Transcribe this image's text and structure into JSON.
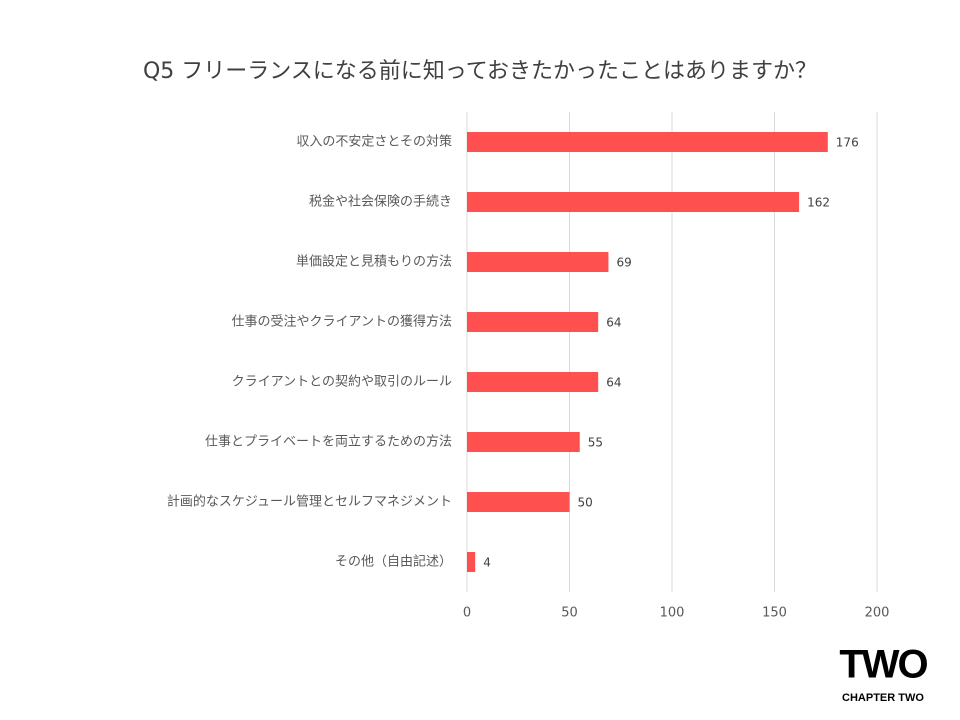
{
  "chart_data": {
    "type": "barh",
    "title": "Q5 フリーランスになる前に知っておきたかったことはありますか？",
    "categories": [
      "収入の不安定さとその対策",
      "税金や社会保険の手続き",
      "単価設定と見積もりの方法",
      "仕事の受注やクライアントの獲得方法",
      "クライアントとの契約や取引のルール",
      "仕事とプライベートを両立するための方法",
      "計画的なスケジュール管理とセルフマネジメント",
      "その他（自由記述）"
    ],
    "values": [
      176,
      162,
      69,
      64,
      64,
      55,
      50,
      4
    ],
    "color": "#ff5050",
    "xlim": [
      0,
      200
    ],
    "xticks": [
      0,
      50,
      100,
      150,
      200
    ],
    "grid": true
  },
  "logo": {
    "mark": "TWO",
    "name": "CHAPTER TWO"
  }
}
